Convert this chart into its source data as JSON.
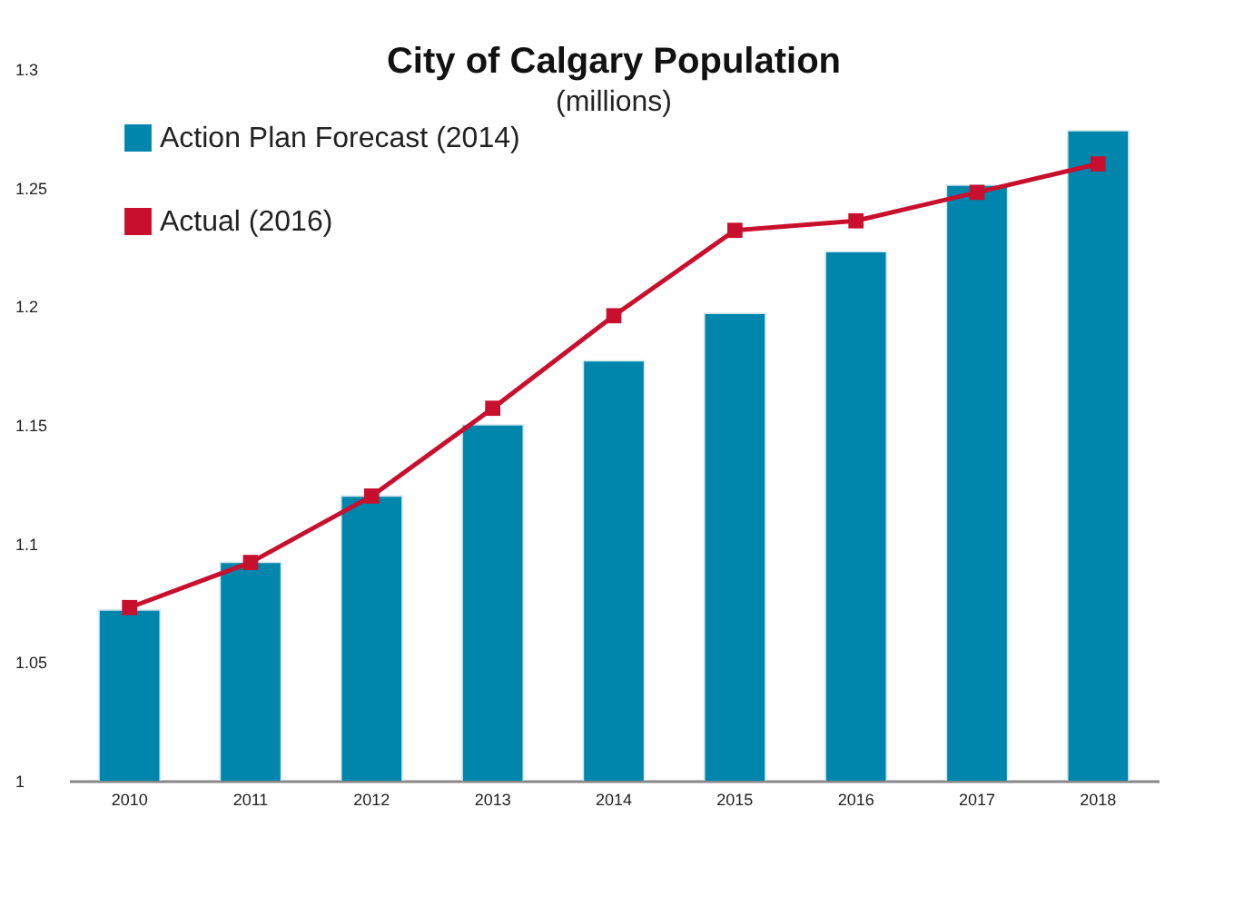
{
  "chart_data": {
    "type": "bar",
    "title": "City of Calgary Population",
    "subtitle": "(millions)",
    "categories": [
      "2010",
      "2011",
      "2012",
      "2013",
      "2014",
      "2015",
      "2016",
      "2017",
      "2018"
    ],
    "series": [
      {
        "name": "Action Plan Forecast (2014)",
        "color": "#0086ad",
        "values": [
          1.072,
          1.092,
          1.12,
          1.15,
          1.177,
          1.197,
          1.223,
          1.251,
          1.274
        ]
      },
      {
        "name": "Actual (2016)",
        "type": "line",
        "color": "#c8102e",
        "values": [
          1.073,
          1.092,
          1.12,
          1.157,
          1.196,
          1.232,
          1.236,
          1.248,
          1.26
        ]
      }
    ],
    "ylim": [
      1,
      1.3
    ],
    "yticks": [
      1,
      1.05,
      1.1,
      1.15,
      1.2,
      1.25,
      1.3
    ],
    "grid": false,
    "legend": "top left",
    "marker": "square",
    "line_style": "solid"
  }
}
